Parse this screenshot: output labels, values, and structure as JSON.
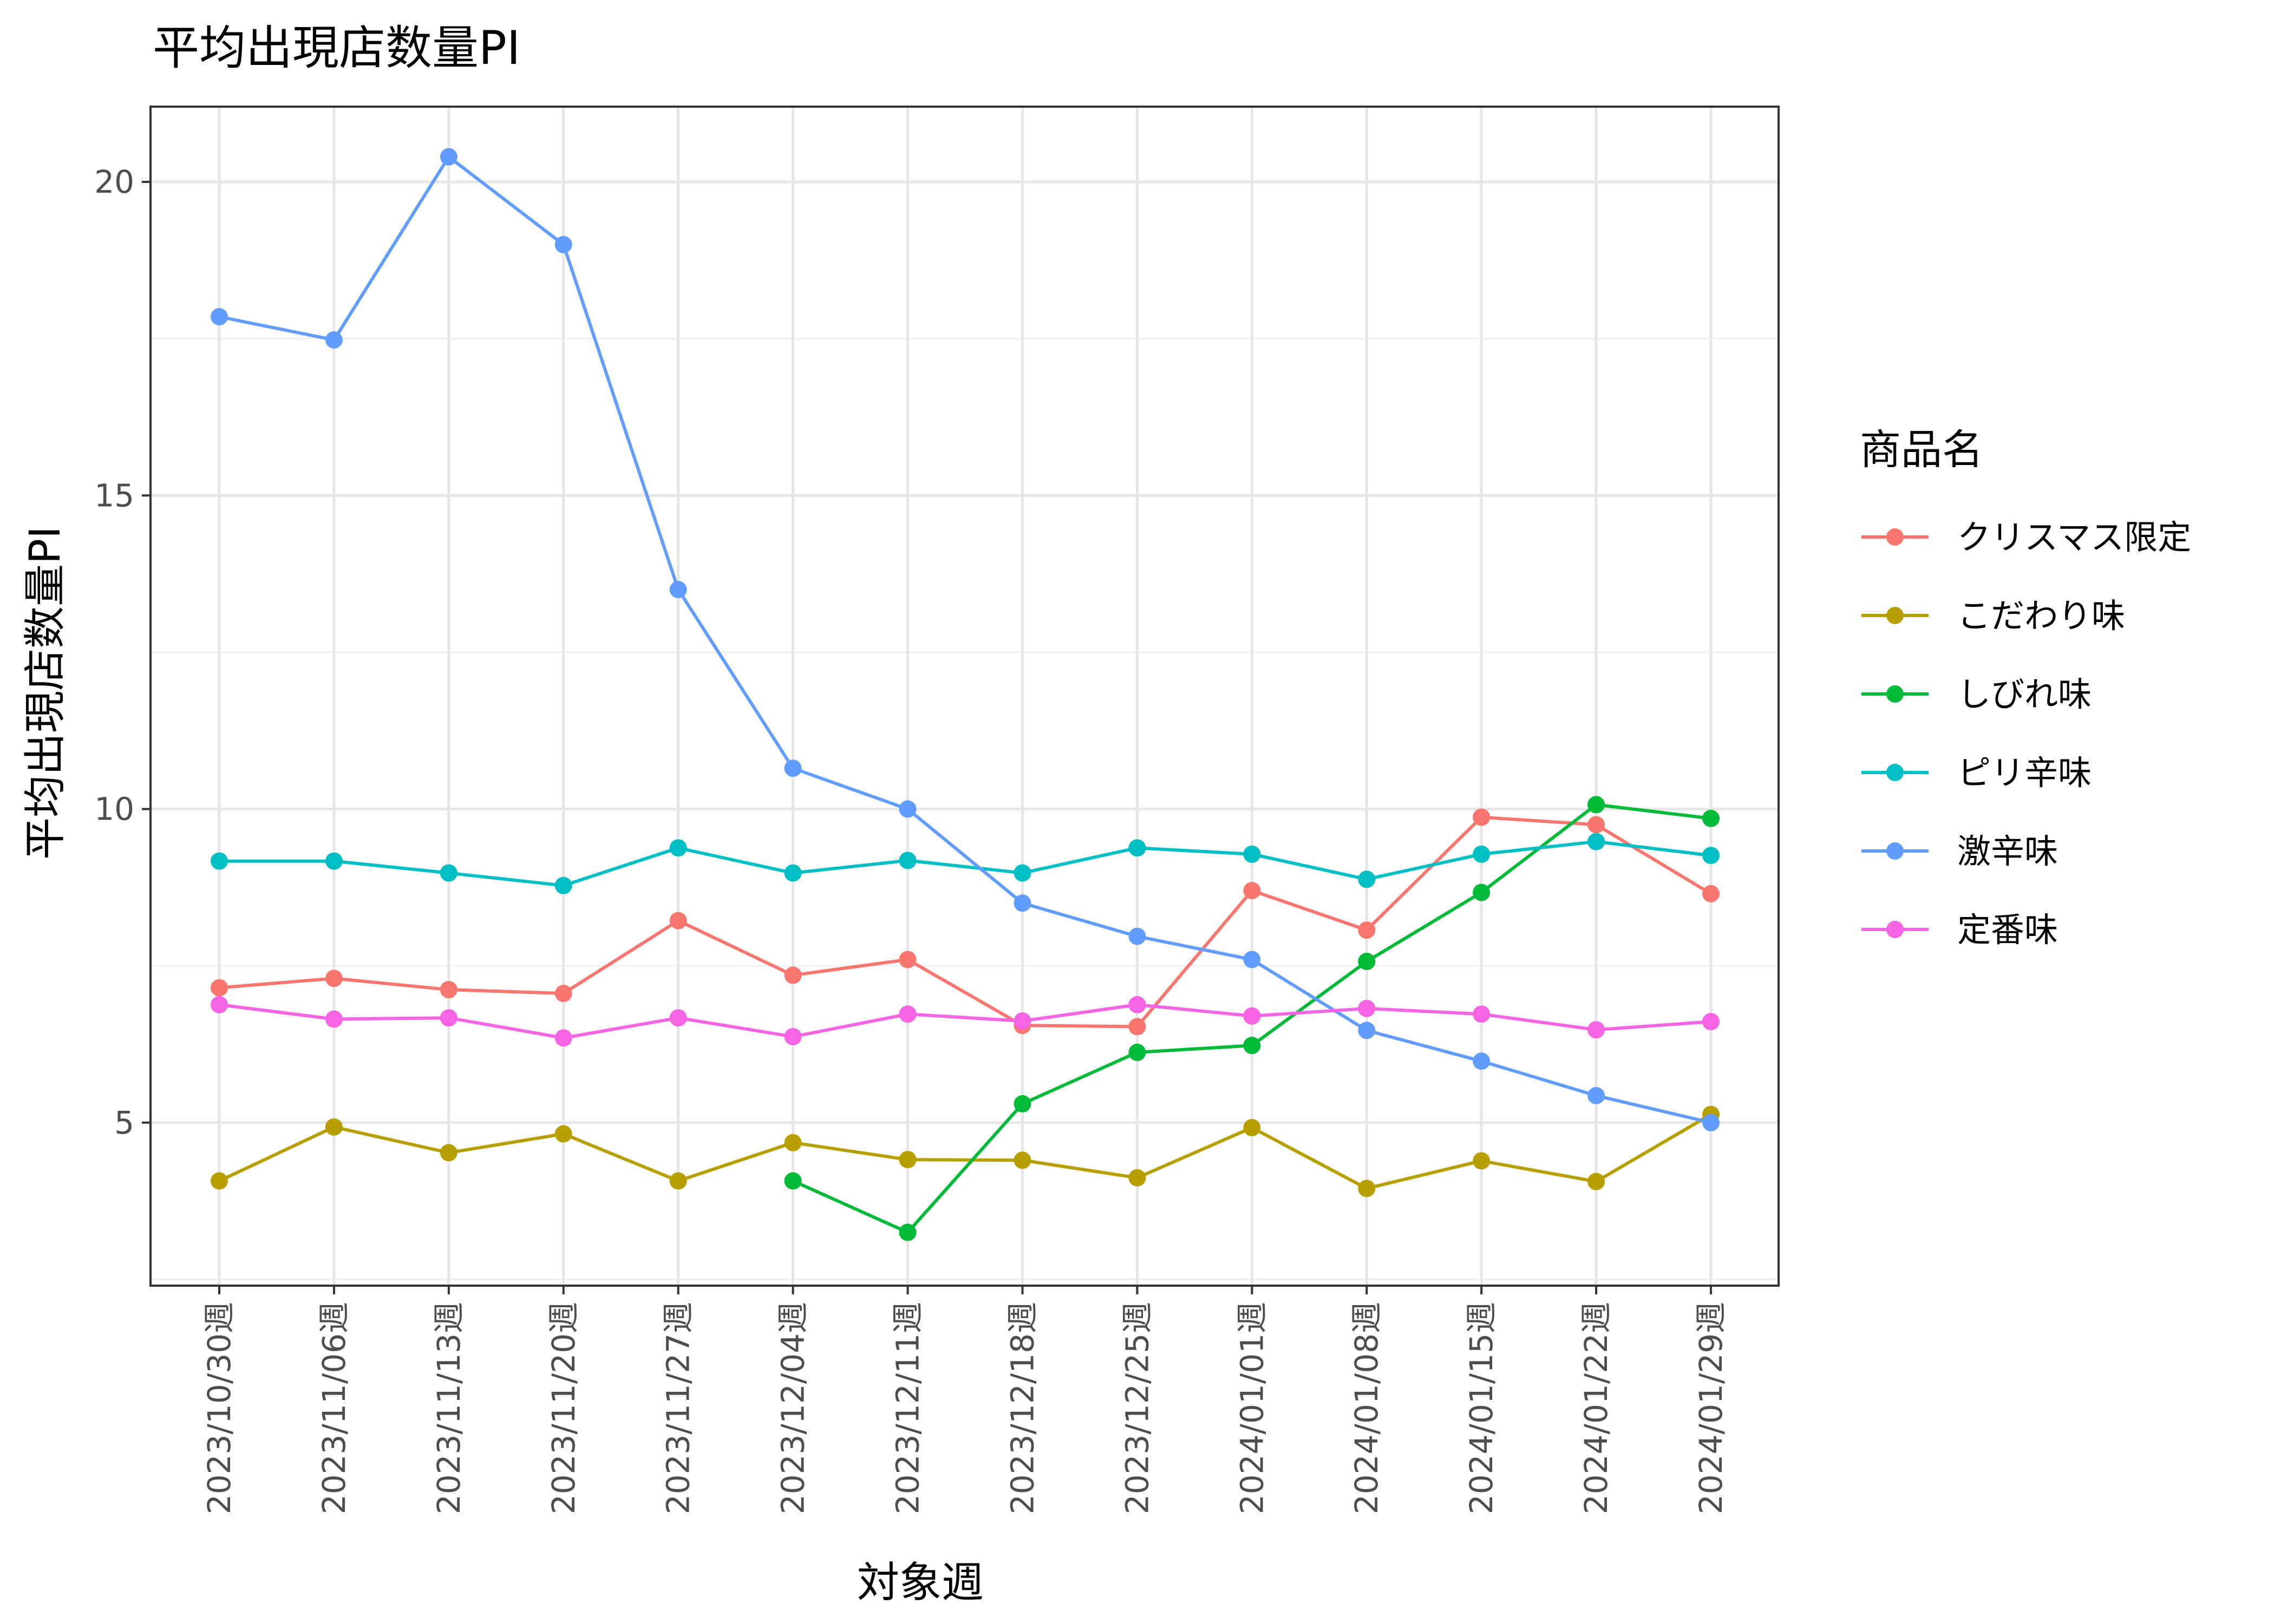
{
  "chart_data": {
    "type": "line",
    "title": "平均出現店数量PI",
    "xlabel": "対象週",
    "ylabel": "平均出現店数量PI",
    "x": [
      "2023/10/30週",
      "2023/11/06週",
      "2023/11/13週",
      "2023/11/20週",
      "2023/11/27週",
      "2023/12/04週",
      "2023/12/11週",
      "2023/12/18週",
      "2023/12/25週",
      "2024/01/01週",
      "2024/01/08週",
      "2024/01/15週",
      "2024/01/22週",
      "2024/01/29週"
    ],
    "ylim": [
      2.4,
      21.2
    ],
    "yticks": [
      5,
      10,
      15,
      20
    ],
    "grid": true,
    "legend": {
      "title": "商品名",
      "position": "right"
    },
    "series": [
      {
        "name": "クリスマス限定",
        "color": "#F8766D",
        "values": [
          7.15,
          7.3,
          7.12,
          7.06,
          8.22,
          7.35,
          7.6,
          6.55,
          6.53,
          8.7,
          8.07,
          9.87,
          9.75,
          8.65
        ]
      },
      {
        "name": "こだわり味",
        "color": "#B79F00",
        "values": [
          4.07,
          4.93,
          4.52,
          4.82,
          4.07,
          4.68,
          4.41,
          4.4,
          4.12,
          4.92,
          3.95,
          4.39,
          4.06,
          5.13
        ]
      },
      {
        "name": "しびれ味",
        "color": "#00BA38",
        "values": [
          null,
          null,
          null,
          null,
          null,
          4.07,
          3.25,
          5.3,
          6.12,
          6.23,
          7.57,
          8.67,
          10.07,
          9.85
        ]
      },
      {
        "name": "ピリ辛味",
        "color": "#00BFC4",
        "values": [
          9.17,
          9.17,
          8.98,
          8.78,
          9.38,
          8.98,
          9.18,
          8.98,
          9.38,
          9.28,
          8.88,
          9.28,
          9.48,
          9.26
        ]
      },
      {
        "name": "激辛味",
        "color": "#619CFF",
        "values": [
          17.85,
          17.48,
          20.4,
          19.0,
          13.5,
          10.65,
          10.0,
          8.5,
          7.97,
          7.6,
          6.47,
          5.98,
          5.43,
          5.0
        ]
      },
      {
        "name": "定番味",
        "color": "#F564E3",
        "values": [
          6.88,
          6.65,
          6.67,
          6.35,
          6.67,
          6.37,
          6.73,
          6.62,
          6.88,
          6.7,
          6.82,
          6.73,
          6.48,
          6.61
        ]
      }
    ]
  }
}
